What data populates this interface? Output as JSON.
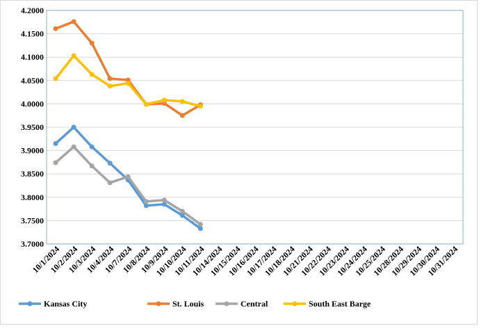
{
  "chart_data": {
    "type": "line",
    "categories": [
      "10/1/2024",
      "10/2/2024",
      "10/3/2024",
      "10/4/2024",
      "10/7/2024",
      "10/8/2024",
      "10/9/2024",
      "10/10/2024",
      "10/11/2024",
      "10/14/2024",
      "10/15/2024",
      "10/16/2024",
      "10/17/2024",
      "10/18/2024",
      "10/21/2024",
      "10/22/2024",
      "10/23/2024",
      "10/24/2024",
      "10/25/2024",
      "10/28/2024",
      "10/29/2024",
      "10/30/2024",
      "10/31/2024"
    ],
    "series": [
      {
        "name": "Kansas City",
        "color": "#5b9bd5",
        "values": [
          3.915,
          3.95,
          3.908,
          3.873,
          3.837,
          3.782,
          3.785,
          3.761,
          3.733,
          null,
          null,
          null,
          null,
          null,
          null,
          null,
          null,
          null,
          null,
          null,
          null,
          null,
          null
        ]
      },
      {
        "name": "St. Louis",
        "color": "#ed7d31",
        "values": [
          4.161,
          4.176,
          4.13,
          4.054,
          4.051,
          3.999,
          4.001,
          3.975,
          3.998,
          null,
          null,
          null,
          null,
          null,
          null,
          null,
          null,
          null,
          null,
          null,
          null,
          null,
          null
        ]
      },
      {
        "name": "Central",
        "color": "#a5a5a5",
        "values": [
          3.874,
          3.908,
          3.867,
          3.831,
          3.844,
          3.791,
          3.794,
          3.77,
          3.742,
          null,
          null,
          null,
          null,
          null,
          null,
          null,
          null,
          null,
          null,
          null,
          null,
          null,
          null
        ]
      },
      {
        "name": "South East Barge",
        "color": "#ffc000",
        "values": [
          4.054,
          4.103,
          4.063,
          4.038,
          4.044,
          3.999,
          4.008,
          4.005,
          3.995,
          null,
          null,
          null,
          null,
          null,
          null,
          null,
          null,
          null,
          null,
          null,
          null,
          null,
          null
        ]
      }
    ],
    "ylim": [
      3.7,
      4.2
    ],
    "yticks": [
      {
        "value": 3.7,
        "label": "3.7000"
      },
      {
        "value": 3.75,
        "label": "3.7500"
      },
      {
        "value": 3.8,
        "label": "3.8000"
      },
      {
        "value": 3.85,
        "label": "3.8500"
      },
      {
        "value": 3.9,
        "label": "3.9000"
      },
      {
        "value": 3.95,
        "label": "3.9500"
      },
      {
        "value": 4.0,
        "label": "4.0000"
      },
      {
        "value": 4.05,
        "label": "4.0500"
      },
      {
        "value": 4.1,
        "label": "4.1000"
      },
      {
        "value": 4.15,
        "label": "4.1500"
      },
      {
        "value": 4.2,
        "label": "4.2000"
      }
    ],
    "grid": true,
    "legend": "bottom"
  }
}
